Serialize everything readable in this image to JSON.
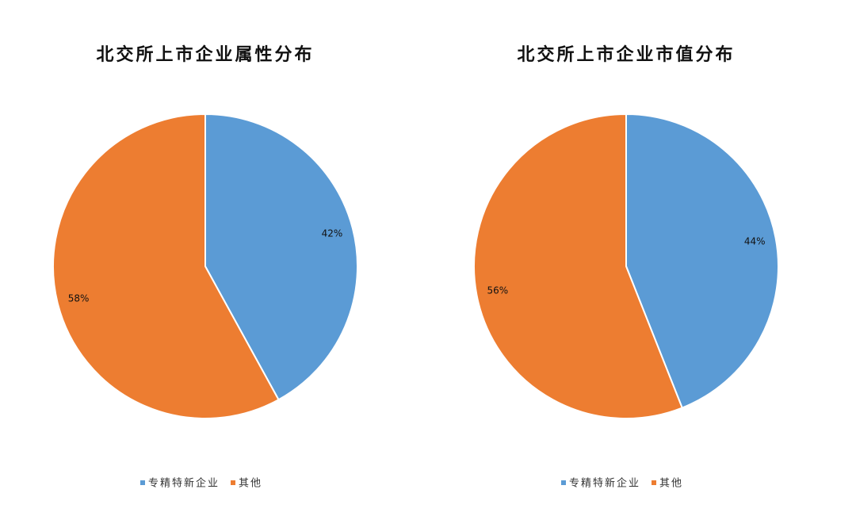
{
  "chart_data": [
    {
      "type": "pie",
      "title": "北交所上市企业属性分布",
      "categories": [
        "专精特新企业",
        "其他"
      ],
      "values": [
        42,
        58
      ],
      "value_labels": [
        "42%",
        "58%"
      ],
      "colors": [
        "#5b9bd5",
        "#ed7d31"
      ]
    },
    {
      "type": "pie",
      "title": "北交所上市企业市值分布",
      "categories": [
        "专精特新企业",
        "其他"
      ],
      "values": [
        44,
        56
      ],
      "value_labels": [
        "44%",
        "56%"
      ],
      "colors": [
        "#5b9bd5",
        "#ed7d31"
      ]
    }
  ]
}
